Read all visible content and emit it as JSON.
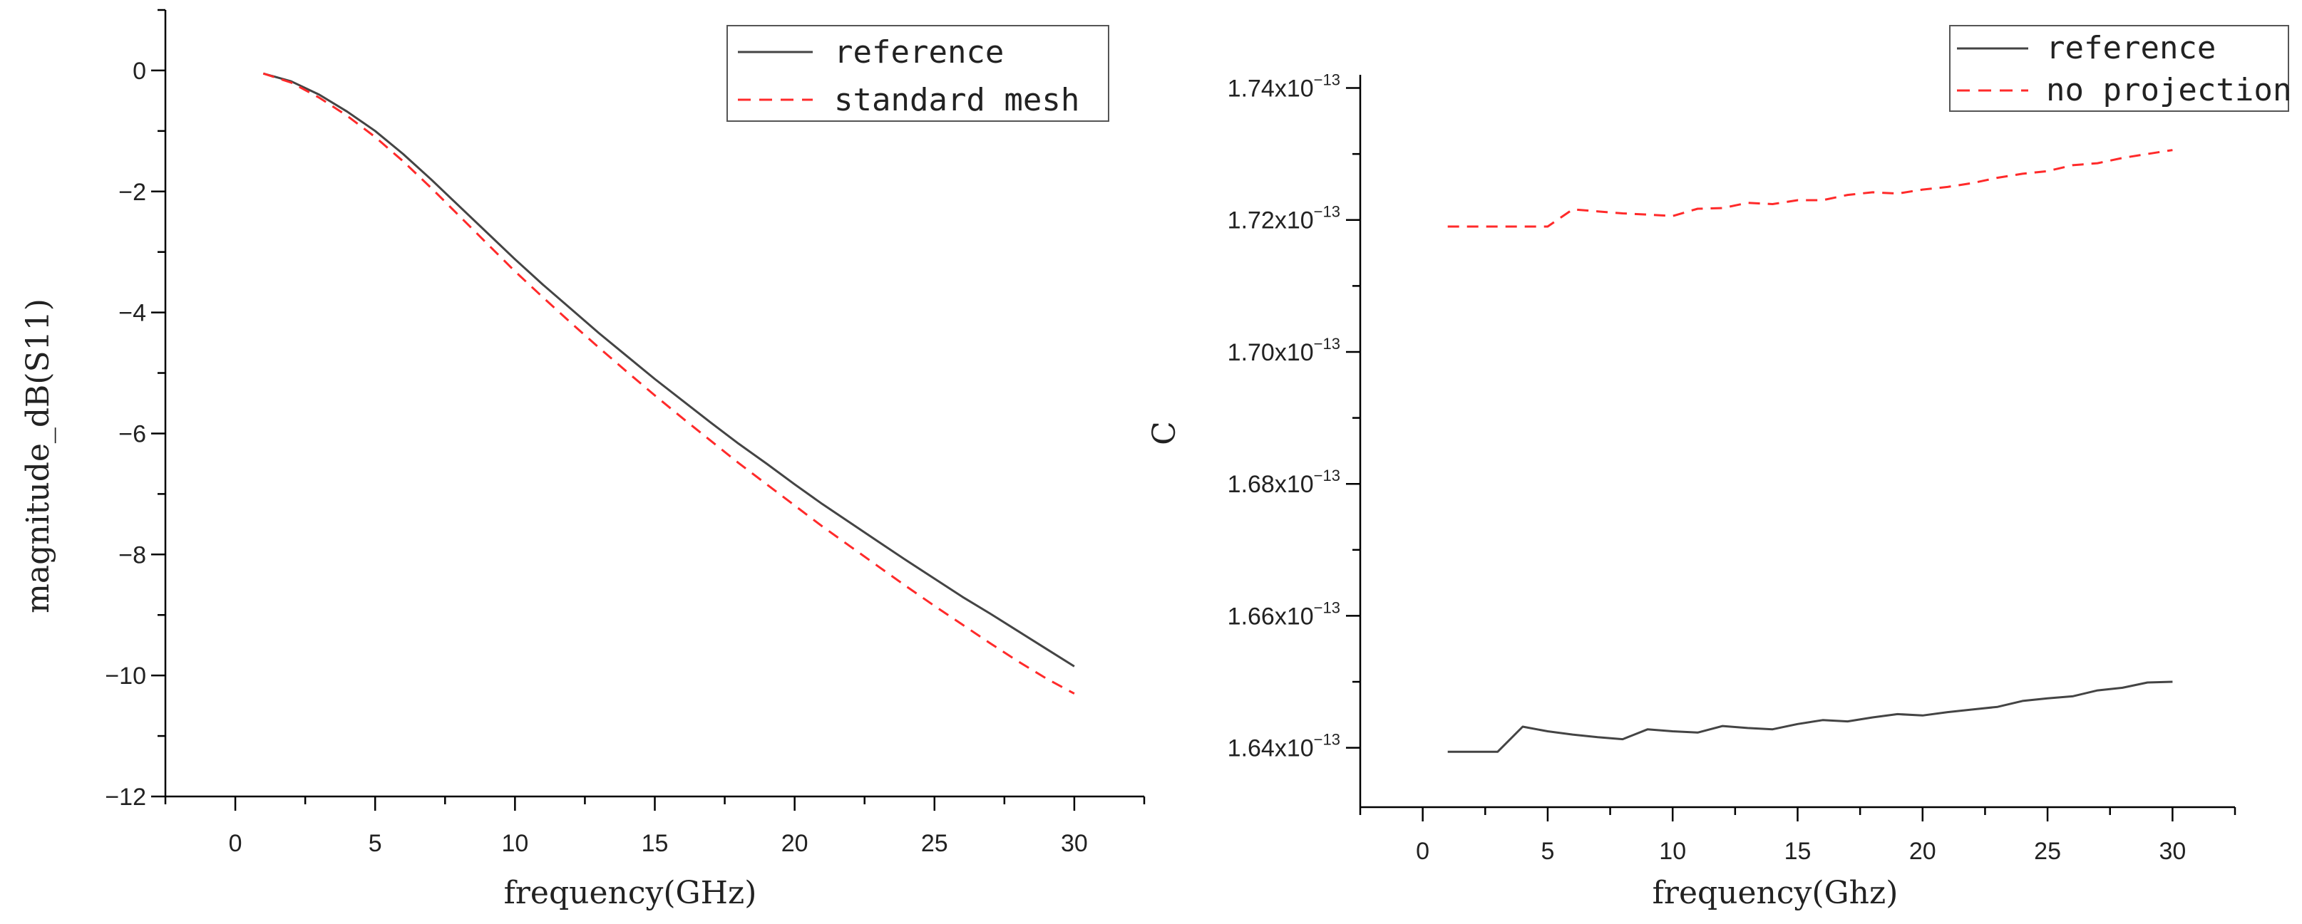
{
  "chart_data": [
    {
      "type": "line",
      "title": "",
      "xlabel": "frequency(GHz)",
      "ylabel": "magnitude_dB(S11)",
      "xlim": [
        -2.5,
        32.5
      ],
      "ylim": [
        -12,
        1
      ],
      "x_ticks": [
        0,
        5,
        10,
        15,
        20,
        25,
        30
      ],
      "x_tick_labels": [
        "0",
        "5",
        "10",
        "15",
        "20",
        "25",
        "30"
      ],
      "y_ticks": [
        0,
        -2,
        -4,
        -6,
        -8,
        -10,
        -12
      ],
      "y_tick_labels": [
        "0",
        "−2",
        "−4",
        "−6",
        "−8",
        "−10",
        "−12"
      ],
      "grid": false,
      "legend_position": "top-right",
      "series": [
        {
          "name": "reference",
          "color": "#444444",
          "dash": "solid",
          "x": [
            1,
            2,
            3,
            4,
            5,
            6,
            7,
            8,
            9,
            10,
            11,
            12,
            13,
            14,
            15,
            16,
            17,
            18,
            19,
            20,
            21,
            22,
            23,
            24,
            25,
            26,
            27,
            28,
            29,
            30
          ],
          "y": [
            -0.05,
            -0.18,
            -0.4,
            -0.68,
            -1.0,
            -1.38,
            -1.8,
            -2.24,
            -2.68,
            -3.12,
            -3.54,
            -3.94,
            -4.34,
            -4.72,
            -5.1,
            -5.46,
            -5.82,
            -6.17,
            -6.5,
            -6.84,
            -7.17,
            -7.48,
            -7.79,
            -8.1,
            -8.4,
            -8.7,
            -8.98,
            -9.27,
            -9.56,
            -9.85
          ]
        },
        {
          "name": "standard mesh",
          "color": "#ff2a2a",
          "dash": "dashed",
          "x": [
            1,
            2,
            3,
            4,
            5,
            6,
            7,
            8,
            9,
            10,
            11,
            12,
            13,
            14,
            15,
            16,
            17,
            18,
            19,
            20,
            21,
            22,
            23,
            24,
            25,
            26,
            27,
            28,
            29,
            30
          ],
          "y": [
            -0.05,
            -0.2,
            -0.45,
            -0.75,
            -1.1,
            -1.5,
            -1.94,
            -2.4,
            -2.86,
            -3.32,
            -3.75,
            -4.17,
            -4.58,
            -4.98,
            -5.37,
            -5.75,
            -6.12,
            -6.49,
            -6.84,
            -7.19,
            -7.54,
            -7.87,
            -8.2,
            -8.53,
            -8.85,
            -9.16,
            -9.47,
            -9.77,
            -10.05,
            -10.3
          ]
        }
      ]
    },
    {
      "type": "line",
      "title": "",
      "xlabel": "frequency(Ghz)",
      "ylabel": "C",
      "xlim": [
        -2.5,
        32.5
      ],
      "ylim": [
        1.631,
        1.742
      ],
      "y_scale_note": "values in units of 1e-13",
      "x_ticks": [
        0,
        5,
        10,
        15,
        20,
        25,
        30
      ],
      "x_tick_labels": [
        "0",
        "5",
        "10",
        "15",
        "20",
        "25",
        "30"
      ],
      "y_ticks": [
        1.64,
        1.66,
        1.68,
        1.7,
        1.72,
        1.74
      ],
      "y_tick_labels": [
        {
          "mantissa": "1.64x10",
          "exp": "−13"
        },
        {
          "mantissa": "1.66x10",
          "exp": "−13"
        },
        {
          "mantissa": "1.68x10",
          "exp": "−13"
        },
        {
          "mantissa": "1.70x10",
          "exp": "−13"
        },
        {
          "mantissa": "1.72x10",
          "exp": "−13"
        },
        {
          "mantissa": "1.74x10",
          "exp": "−13"
        }
      ],
      "grid": false,
      "legend_position": "top-right",
      "series": [
        {
          "name": "reference",
          "color": "#444444",
          "dash": "solid",
          "x": [
            1,
            2,
            3,
            4,
            5,
            6,
            7,
            8,
            9,
            10,
            11,
            12,
            13,
            14,
            15,
            16,
            17,
            18,
            19,
            20,
            21,
            22,
            23,
            24,
            25,
            26,
            27,
            28,
            29,
            30
          ],
          "y": [
            1.6394,
            1.6394,
            1.6394,
            1.6432,
            1.6425,
            1.642,
            1.6416,
            1.6413,
            1.6428,
            1.6425,
            1.6423,
            1.6433,
            1.643,
            1.6428,
            1.6436,
            1.6442,
            1.644,
            1.6446,
            1.6451,
            1.6449,
            1.6454,
            1.6458,
            1.6462,
            1.6471,
            1.6475,
            1.6478,
            1.6487,
            1.6491,
            1.6499,
            1.65
          ]
        },
        {
          "name": "no projection",
          "color": "#ff2a2a",
          "dash": "dashed",
          "x": [
            1,
            2,
            3,
            4,
            5,
            6,
            7,
            8,
            9,
            10,
            11,
            12,
            13,
            14,
            15,
            16,
            17,
            18,
            19,
            20,
            21,
            22,
            23,
            24,
            25,
            26,
            27,
            28,
            29,
            30
          ],
          "y": [
            1.719,
            1.719,
            1.719,
            1.719,
            1.719,
            1.7216,
            1.7213,
            1.721,
            1.7208,
            1.7206,
            1.7217,
            1.7218,
            1.7226,
            1.7224,
            1.723,
            1.723,
            1.7238,
            1.7242,
            1.724,
            1.7246,
            1.725,
            1.7256,
            1.7264,
            1.727,
            1.7274,
            1.7283,
            1.7286,
            1.7294,
            1.73,
            1.7306
          ]
        }
      ]
    }
  ]
}
